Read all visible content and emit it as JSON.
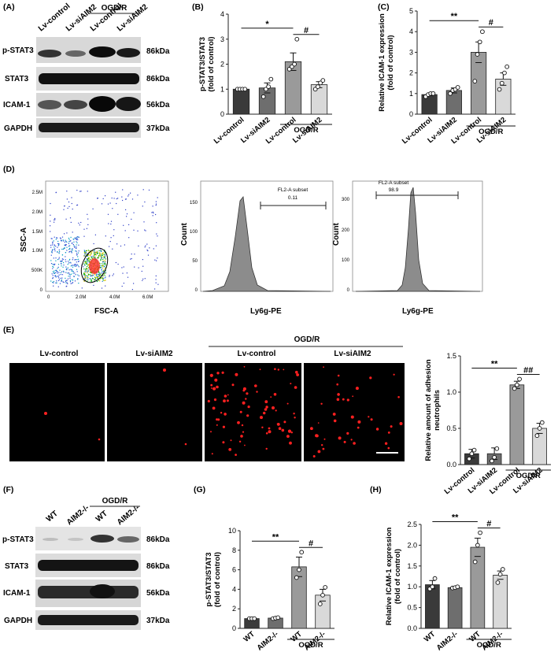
{
  "panel_letters": [
    "(A)",
    "(B)",
    "(C)",
    "(D)",
    "(E)",
    "(F)",
    "(G)",
    "(H)"
  ],
  "panelA": {
    "lanes": [
      "Lv-control",
      "Lv-siAIM2",
      "Lv-control",
      "Lv-siAIM2"
    ],
    "group": "OGD/R",
    "rows": [
      {
        "name": "p-STAT3",
        "kda": "86kDa"
      },
      {
        "name": "STAT3",
        "kda": "86kDa"
      },
      {
        "name": "ICAM-1",
        "kda": "56kDa"
      },
      {
        "name": "GAPDH",
        "kda": "37kDa"
      }
    ]
  },
  "panelF": {
    "lanes": [
      "WT",
      "AIM2-/-",
      "WT",
      "AIM2-/-"
    ],
    "group": "OGD/R",
    "rows": [
      {
        "name": "p-STAT3",
        "kda": "86kDa"
      },
      {
        "name": "STAT3",
        "kda": "86kDa"
      },
      {
        "name": "ICAM-1",
        "kda": "56kDa"
      },
      {
        "name": "GAPDH",
        "kda": "37kDa"
      }
    ]
  },
  "panelD": {
    "p1": {
      "ylabel": "SSC-A",
      "xlabel": "FSC-A",
      "yticks": [
        "2.5M",
        "2.0M",
        "1.5M",
        "1.0M",
        "500K",
        "0"
      ],
      "xticks": [
        "0",
        "2.0M",
        "4.0M",
        "6.0M"
      ]
    },
    "p2": {
      "ylabel": "Count",
      "xlabel": "Ly6g-PE",
      "gate": "FL2-A subset",
      "value": "0.11",
      "yticks": [
        "150",
        "100",
        "50",
        "0"
      ]
    },
    "p3": {
      "ylabel": "Count",
      "xlabel": "Ly6g-PE",
      "gate": "FL2-A subset",
      "value": "98.9",
      "yticks": [
        "300",
        "200",
        "100",
        "0"
      ]
    }
  },
  "panelE": {
    "images": [
      "Lv-control",
      "Lv-siAIM2",
      "Lv-control",
      "Lv-siAIM2"
    ],
    "group": "OGD/R"
  },
  "chart_data": [
    {
      "id": "B",
      "type": "bar",
      "ylabel": "p-STAT3/STAT3\n(fold of control)",
      "categories": [
        "Lv-control",
        "Lv-siAIM2",
        "Lv-control",
        "Lv-siAIM2"
      ],
      "values": [
        1.0,
        1.05,
        2.1,
        1.18
      ],
      "errors": [
        0.02,
        0.2,
        0.35,
        0.12
      ],
      "points": [
        [
          1,
          1,
          1,
          1
        ],
        [
          0.7,
          1.0,
          1.1,
          1.4
        ],
        [
          1.8,
          1.9,
          2.0,
          3.0
        ],
        [
          1.0,
          1.1,
          1.25,
          1.35
        ]
      ],
      "ylim": [
        0,
        4
      ],
      "yticks": [
        0,
        1,
        2,
        3,
        4
      ],
      "group": "OGD/R",
      "sig": [
        {
          "from": 0,
          "to": 2,
          "label": "*"
        },
        {
          "from": 2,
          "to": 3,
          "label": "#"
        }
      ]
    },
    {
      "id": "C",
      "type": "bar",
      "ylabel": "Relative ICAM-1 expression\n(fold of control)",
      "categories": [
        "Lv-control",
        "Lv-siAIM2",
        "Lv-control",
        "Lv-siAIM2"
      ],
      "values": [
        0.95,
        1.15,
        3.0,
        1.7
      ],
      "errors": [
        0.05,
        0.12,
        0.5,
        0.3
      ],
      "points": [
        [
          0.85,
          0.95,
          1.0,
          1.0
        ],
        [
          1.0,
          1.15,
          1.2,
          1.3
        ],
        [
          1.6,
          2.9,
          3.5,
          4.0
        ],
        [
          1.2,
          1.5,
          2.0,
          2.3
        ]
      ],
      "ylim": [
        0,
        5
      ],
      "yticks": [
        0,
        1,
        2,
        3,
        4,
        5
      ],
      "group": "OGD/R",
      "sig": [
        {
          "from": 0,
          "to": 2,
          "label": "**"
        },
        {
          "from": 2,
          "to": 3,
          "label": "#"
        }
      ]
    },
    {
      "id": "E",
      "type": "bar",
      "ylabel": "Relative amount of adhesion\nneutrophils",
      "categories": [
        "Lv-control",
        "Lv-siAIM2",
        "Lv-control",
        "Lv-siAIM2"
      ],
      "values": [
        0.15,
        0.15,
        1.1,
        0.5
      ],
      "errors": [
        0.06,
        0.08,
        0.05,
        0.07
      ],
      "points": [
        [
          0.08,
          0.15,
          0.2
        ],
        [
          0.05,
          0.1,
          0.22
        ],
        [
          1.05,
          1.1,
          1.18
        ],
        [
          0.4,
          0.5,
          0.58
        ]
      ],
      "ylim": [
        0,
        1.5
      ],
      "yticks": [
        0.0,
        0.5,
        1.0,
        1.5
      ],
      "group": "OGD/R",
      "sig": [
        {
          "from": 0,
          "to": 2,
          "label": "**"
        },
        {
          "from": 2,
          "to": 3,
          "label": "##"
        }
      ]
    },
    {
      "id": "G",
      "type": "bar",
      "ylabel": "p-STAT3/STAT3\n(fold of control)",
      "categories": [
        "WT",
        "AIM2-/-",
        "WT",
        "AIM2-/-"
      ],
      "values": [
        1.0,
        1.05,
        6.3,
        3.4
      ],
      "errors": [
        0.05,
        0.05,
        1.0,
        0.6
      ],
      "points": [
        [
          1,
          1,
          1
        ],
        [
          1,
          1.05,
          1.1
        ],
        [
          5.2,
          6.0,
          7.8
        ],
        [
          2.5,
          3.4,
          4.2
        ]
      ],
      "ylim": [
        0,
        10
      ],
      "yticks": [
        0,
        2,
        4,
        6,
        8,
        10
      ],
      "group": "OGD/R",
      "sig": [
        {
          "from": 0,
          "to": 2,
          "label": "**"
        },
        {
          "from": 2,
          "to": 3,
          "label": "#"
        }
      ]
    },
    {
      "id": "H",
      "type": "bar",
      "ylabel": "Relative ICAM-1 expression\n(fold of control)",
      "categories": [
        "WT",
        "AIM2-/-",
        "WT",
        "AIM2-/-"
      ],
      "values": [
        1.05,
        0.98,
        1.95,
        1.28
      ],
      "errors": [
        0.1,
        0.02,
        0.22,
        0.1
      ],
      "points": [
        [
          0.95,
          1.0,
          1.2
        ],
        [
          0.97,
          0.98,
          1.0
        ],
        [
          1.6,
          2.0,
          2.3
        ],
        [
          1.1,
          1.3,
          1.42
        ]
      ],
      "ylim": [
        0,
        2.5
      ],
      "yticks": [
        0.0,
        0.5,
        1.0,
        1.5,
        2.0,
        2.5
      ],
      "group": "OGD/R",
      "sig": [
        {
          "from": 0,
          "to": 2,
          "label": "**"
        },
        {
          "from": 2,
          "to": 3,
          "label": "#"
        }
      ]
    }
  ]
}
